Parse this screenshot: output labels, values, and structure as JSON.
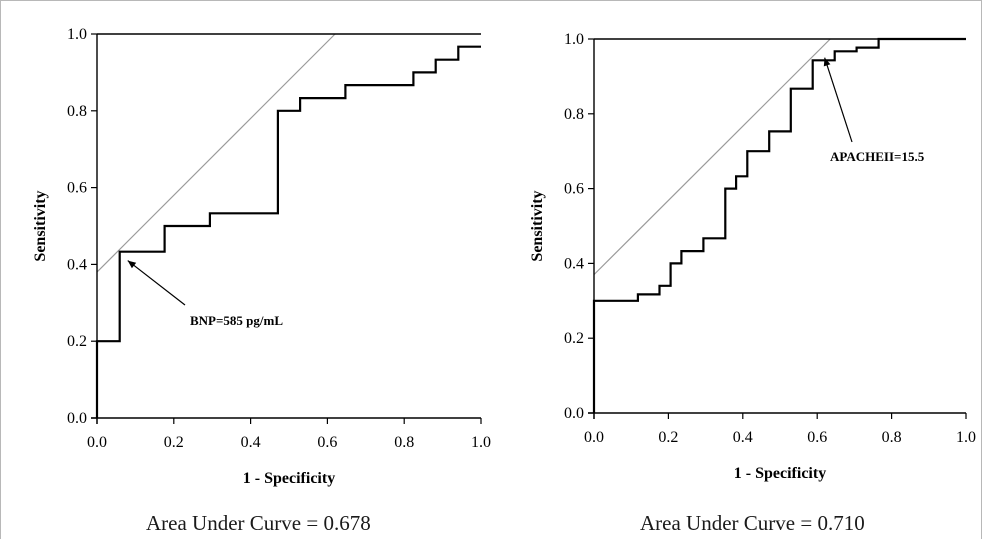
{
  "chart_data": [
    {
      "type": "line",
      "xlabel": "1 - Specificity",
      "ylabel": "Sensitivity",
      "xlim": [
        0,
        1
      ],
      "ylim": [
        0,
        1
      ],
      "ticks": [
        "0.0",
        "0.2",
        "0.4",
        "0.6",
        "0.8",
        "1.0"
      ],
      "series": [
        {
          "x": [
            0,
            0,
            0.059,
            0.059,
            0.176,
            0.176,
            0.294,
            0.294,
            0.471,
            0.471,
            0.529,
            0.529,
            0.647,
            0.647,
            0.824,
            0.824,
            0.882,
            0.882,
            0.941,
            0.941,
            1.0
          ],
          "y": [
            0,
            0.2,
            0.2,
            0.433,
            0.433,
            0.5,
            0.5,
            0.533,
            0.533,
            0.8,
            0.8,
            0.833,
            0.833,
            0.867,
            0.867,
            0.9,
            0.9,
            0.933,
            0.933,
            0.967,
            0.967
          ]
        }
      ],
      "reference_line": {
        "x": [
          0,
          0.62
        ],
        "y": [
          0.38,
          1.0
        ]
      },
      "annotations": [
        {
          "text": "BNP=585 pg/mL",
          "point": [
            0.08,
            0.41
          ]
        }
      ],
      "footer": "Area Under Curve = 0.678"
    },
    {
      "type": "line",
      "xlabel": "1 - Specificity",
      "ylabel": "Sensitivity",
      "xlim": [
        0,
        1
      ],
      "ylim": [
        0,
        1
      ],
      "ticks": [
        "0.0",
        "0.2",
        "0.4",
        "0.6",
        "0.8",
        "1.0"
      ],
      "series": [
        {
          "x": [
            0,
            0,
            0.118,
            0.118,
            0.176,
            0.176,
            0.206,
            0.206,
            0.235,
            0.235,
            0.294,
            0.294,
            0.353,
            0.353,
            0.382,
            0.382,
            0.412,
            0.412,
            0.471,
            0.471,
            0.529,
            0.529,
            0.588,
            0.588,
            0.647,
            0.647,
            0.706,
            0.706,
            0.765,
            0.765,
            1.0
          ],
          "y": [
            0,
            0.3,
            0.3,
            0.317,
            0.317,
            0.34,
            0.34,
            0.4,
            0.4,
            0.433,
            0.433,
            0.467,
            0.467,
            0.6,
            0.6,
            0.633,
            0.633,
            0.7,
            0.7,
            0.753,
            0.753,
            0.867,
            0.867,
            0.943,
            0.943,
            0.967,
            0.967,
            0.977,
            0.977,
            1.0,
            1.0
          ]
        }
      ],
      "reference_line": {
        "x": [
          0,
          0.635
        ],
        "y": [
          0.37,
          1.0
        ]
      },
      "annotations": [
        {
          "text": "APACHEII=15.5",
          "point": [
            0.62,
            0.95
          ]
        }
      ],
      "footer": "Area Under Curve = 0.710"
    }
  ]
}
